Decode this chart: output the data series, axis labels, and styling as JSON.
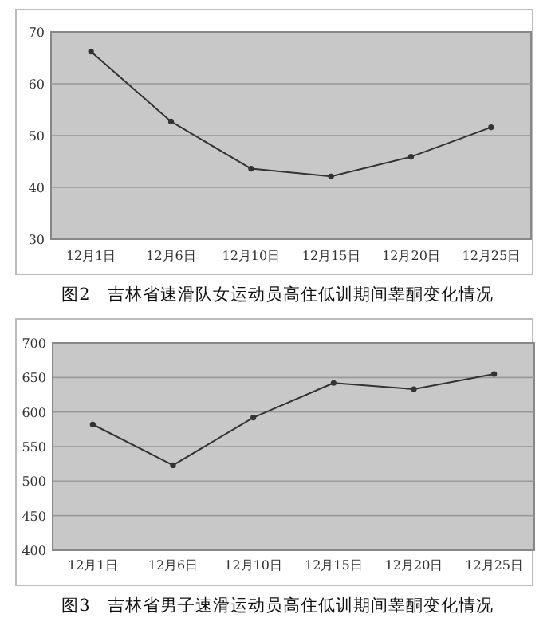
{
  "chart_data": [
    {
      "type": "line",
      "title": "图2　吉林省速滑队女运动员高住低训期间睾酮变化情况",
      "categories": [
        "12月1日",
        "12月6日",
        "12月10日",
        "12月15日",
        "12月20日",
        "12月25日"
      ],
      "series": [
        {
          "color": "#333333",
          "values": [
            66.2,
            52.7,
            43.6,
            42.1,
            45.9,
            51.6
          ]
        }
      ],
      "ylim": [
        30,
        70
      ],
      "yticks": [
        30,
        40,
        50,
        60,
        70
      ],
      "grid": "y",
      "marker": "circle",
      "line_style": "solid"
    },
    {
      "type": "line",
      "title": "图3　吉林省男子速滑运动员高住低训期间睾酮变化情况",
      "categories": [
        "12月1日",
        "12月6日",
        "12月10日",
        "12月15日",
        "12月20日",
        "12月25日"
      ],
      "series": [
        {
          "color": "#333333",
          "values": [
            582,
            523,
            592,
            642,
            633,
            655
          ]
        }
      ],
      "ylim": [
        400,
        700
      ],
      "yticks": [
        400,
        450,
        500,
        550,
        600,
        650,
        700
      ],
      "grid": "y",
      "marker": "circle",
      "line_style": "solid"
    }
  ]
}
